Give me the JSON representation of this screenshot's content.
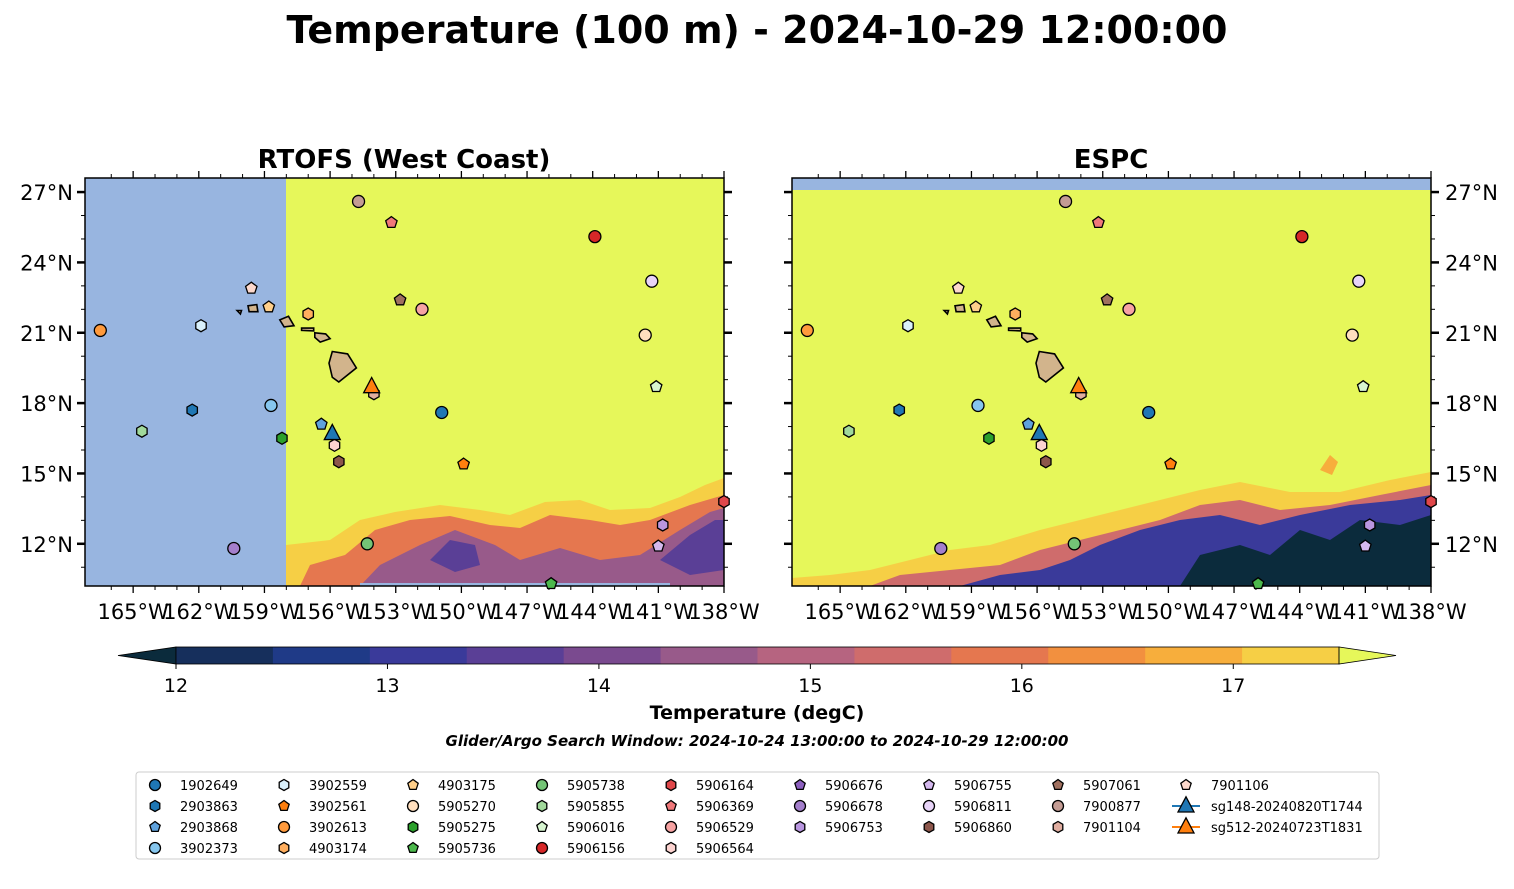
{
  "title": "Temperature (100 m) - 2024-10-29 12:00:00",
  "subtitle": "Glider/Argo Search Window: 2024-10-24 13:00:00 to 2024-10-29 12:00:00",
  "colorbar": {
    "label": "Temperature (degC)",
    "min": 11.75,
    "max": 17.5,
    "tick_values": [
      12,
      13,
      14,
      15,
      16,
      17
    ],
    "tick_labels": [
      "12",
      "13",
      "14",
      "15",
      "16",
      "17"
    ],
    "extend": "both",
    "colors": [
      "#0b2b3c",
      "#162f5c",
      "#1f3a87",
      "#3a3a9a",
      "#5a3f96",
      "#7a4a8f",
      "#985a8a",
      "#b66480",
      "#cf6c6c",
      "#e5774f",
      "#f2903f",
      "#f7ae3c",
      "#f6cf45",
      "#e6f75a"
    ]
  },
  "chart_data": [
    {
      "type": "map",
      "title": "RTOFS (West Coast)",
      "x_ticks": [
        "165°W",
        "162°W",
        "159°W",
        "156°W",
        "153°W",
        "150°W",
        "147°W",
        "144°W",
        "141°W",
        "138°W"
      ],
      "y_ticks": [
        "27°N",
        "24°N",
        "21°N",
        "18°N",
        "15°N",
        "12°N"
      ],
      "lon_range": [
        -167.2,
        -138.0
      ],
      "lat_range": [
        10.2,
        27.6
      ],
      "model_domain_west_lon": -158.0,
      "no_data_color": "#98b5e0",
      "dominant_field_color": "#e6f75a"
    },
    {
      "type": "map",
      "title": "ESPC",
      "x_ticks": [
        "165°W",
        "162°W",
        "159°W",
        "156°W",
        "153°W",
        "150°W",
        "147°W",
        "144°W",
        "141°W",
        "138°W"
      ],
      "y_ticks": [
        "27°N",
        "24°N",
        "21°N",
        "18°N",
        "15°N",
        "12°N"
      ],
      "lon_range": [
        -167.2,
        -138.0
      ],
      "lat_range": [
        10.2,
        27.6
      ],
      "model_domain_north_lat": 27.1,
      "no_data_color": "#98b5e0",
      "dominant_field_color": "#e6f75a"
    }
  ],
  "floats": [
    {
      "id": "1902649",
      "marker": "circle",
      "color": "#1f77b4",
      "lon": -150.9,
      "lat": 17.6
    },
    {
      "id": "2903863",
      "marker": "hexagon",
      "color": "#1f77b4",
      "lon": -162.3,
      "lat": 17.7
    },
    {
      "id": "2903868",
      "marker": "pentagon",
      "color": "#5fa2dd",
      "lon": -156.4,
      "lat": 17.1
    },
    {
      "id": "3902373",
      "marker": "circle",
      "color": "#86c6ee",
      "lon": -158.7,
      "lat": 17.9
    },
    {
      "id": "3902559",
      "marker": "hexagon",
      "color": "#d9f0fb",
      "lon": -161.9,
      "lat": 21.3
    },
    {
      "id": "3902561",
      "marker": "pentagon",
      "color": "#ff7f0e",
      "lon": -149.9,
      "lat": 15.4
    },
    {
      "id": "3902613",
      "marker": "circle",
      "color": "#ff9a3c",
      "lon": -166.5,
      "lat": 21.1
    },
    {
      "id": "4903174",
      "marker": "hexagon",
      "color": "#ffae5e",
      "lon": -157.0,
      "lat": 21.8
    },
    {
      "id": "4903175",
      "marker": "pentagon",
      "color": "#ffcf8a",
      "lon": -158.8,
      "lat": 22.1
    },
    {
      "id": "5905270",
      "marker": "circle",
      "color": "#ffdfbf",
      "lon": -141.6,
      "lat": 20.9
    },
    {
      "id": "5905275",
      "marker": "hexagon",
      "color": "#2ca02c",
      "lon": -158.2,
      "lat": 16.5
    },
    {
      "id": "5905736",
      "marker": "pentagon",
      "color": "#4cb84c",
      "lon": -145.9,
      "lat": 10.3
    },
    {
      "id": "5905738",
      "marker": "circle",
      "color": "#74c476",
      "lon": -154.3,
      "lat": 12.0
    },
    {
      "id": "5905855",
      "marker": "hexagon",
      "color": "#a1d99b",
      "lon": -164.6,
      "lat": 16.8
    },
    {
      "id": "5906016",
      "marker": "pentagon",
      "color": "#d7f5d0",
      "lon": -141.1,
      "lat": 18.7
    },
    {
      "id": "5906156",
      "marker": "circle",
      "color": "#d62728",
      "lon": -143.9,
      "lat": 25.1
    },
    {
      "id": "5906164",
      "marker": "hexagon",
      "color": "#e0474a",
      "lon": -138.0,
      "lat": 13.8
    },
    {
      "id": "5906369",
      "marker": "pentagon",
      "color": "#f0787a",
      "lon": -153.2,
      "lat": 25.7
    },
    {
      "id": "5906529",
      "marker": "circle",
      "color": "#f7a3a3",
      "lon": -151.8,
      "lat": 22.0
    },
    {
      "id": "5906564",
      "marker": "hexagon",
      "color": "#fcd3d0",
      "lon": -155.8,
      "lat": 16.2
    },
    {
      "id": "5906676",
      "marker": "pentagon",
      "color": "#8c5fbf",
      "lon": -148.0,
      "lat": 9.9
    },
    {
      "id": "5906678",
      "marker": "circle",
      "color": "#a47fcc",
      "lon": -160.4,
      "lat": 11.8
    },
    {
      "id": "5906753",
      "marker": "hexagon",
      "color": "#b996e0",
      "lon": -140.8,
      "lat": 12.8
    },
    {
      "id": "5906755",
      "marker": "pentagon",
      "color": "#d4b8ee",
      "lon": -141.0,
      "lat": 11.9
    },
    {
      "id": "5906811",
      "marker": "circle",
      "color": "#e8d4f8",
      "lon": -141.3,
      "lat": 23.2
    },
    {
      "id": "5906860",
      "marker": "hexagon",
      "color": "#8c564b",
      "lon": -155.6,
      "lat": 15.5
    },
    {
      "id": "5907061",
      "marker": "pentagon",
      "color": "#a0705f",
      "lon": -152.8,
      "lat": 22.4
    },
    {
      "id": "7900877",
      "marker": "circle",
      "color": "#c49c94",
      "lon": -154.7,
      "lat": 26.6
    },
    {
      "id": "7901104",
      "marker": "hexagon",
      "color": "#e0ada0",
      "lon": -154.0,
      "lat": 18.4
    },
    {
      "id": "7901106",
      "marker": "pentagon",
      "color": "#fcd8cc",
      "lon": -159.6,
      "lat": 22.9
    }
  ],
  "gliders": [
    {
      "id": "sg148-20240820T1744",
      "color": "#1f77b4",
      "lon": -155.9,
      "lat": 16.7
    },
    {
      "id": "sg512-20240723T1831",
      "color": "#ff7f0e",
      "lon": -154.1,
      "lat": 18.7
    }
  ],
  "legend_order": [
    "1902649",
    "2903863",
    "2903868",
    "3902373",
    "3902559",
    "3902561",
    "3902613",
    "4903174",
    "4903175",
    "5905270",
    "5905275",
    "5905736",
    "5905738",
    "5905855",
    "5906016",
    "5906156",
    "5906164",
    "5906369",
    "5906529",
    "5906564",
    "5906676",
    "5906678",
    "5906753",
    "5906755",
    "5906811",
    "5906860",
    "5907061",
    "7900877",
    "7901104",
    "7901106",
    "sg148-20240820T1744",
    "sg512-20240723T1831"
  ]
}
